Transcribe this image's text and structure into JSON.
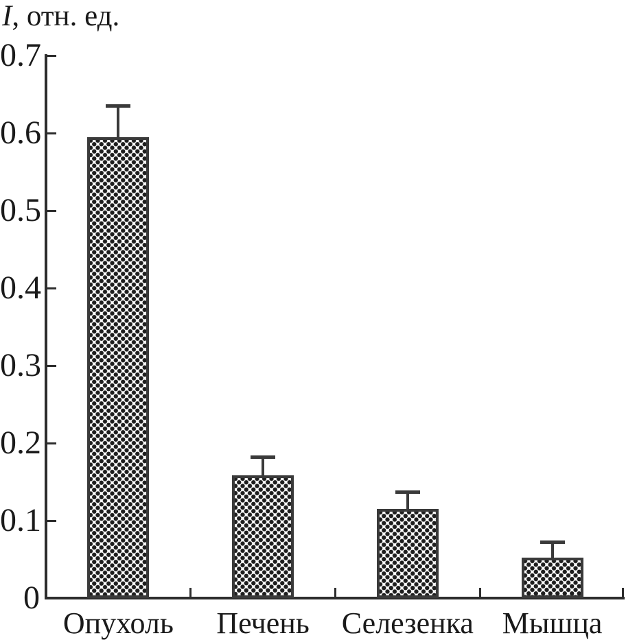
{
  "chart_data": {
    "type": "bar",
    "title": "",
    "ylabel": "I, отн. ед.",
    "ylabel_italic": "I",
    "ylabel_rest": ", отн. ед.",
    "xlabel": "",
    "categories": [
      "Опухоль",
      "Печень",
      "Селезенка",
      "Мышца"
    ],
    "values": [
      0.595,
      0.158,
      0.115,
      0.052
    ],
    "errors": [
      0.04,
      0.024,
      0.022,
      0.021
    ],
    "ylim": [
      0,
      0.7
    ],
    "yticks": [
      0,
      0.1,
      0.2,
      0.3,
      0.4,
      0.5,
      0.6,
      0.7
    ],
    "ytick_labels": [
      "0",
      "0.1",
      "0.2",
      "0.3",
      "0.4",
      "0.5",
      "0.6",
      "0.7"
    ],
    "grid": false,
    "legend": "none",
    "error_bars": "upper",
    "bar_fill_pattern": "dot-lattice",
    "colors": {
      "axis": "#2d2d2d",
      "text": "#1a1a1a",
      "bar_border": "#3a3a3a",
      "bar_dots": "#1e1e1e",
      "background": "#ffffff"
    }
  }
}
